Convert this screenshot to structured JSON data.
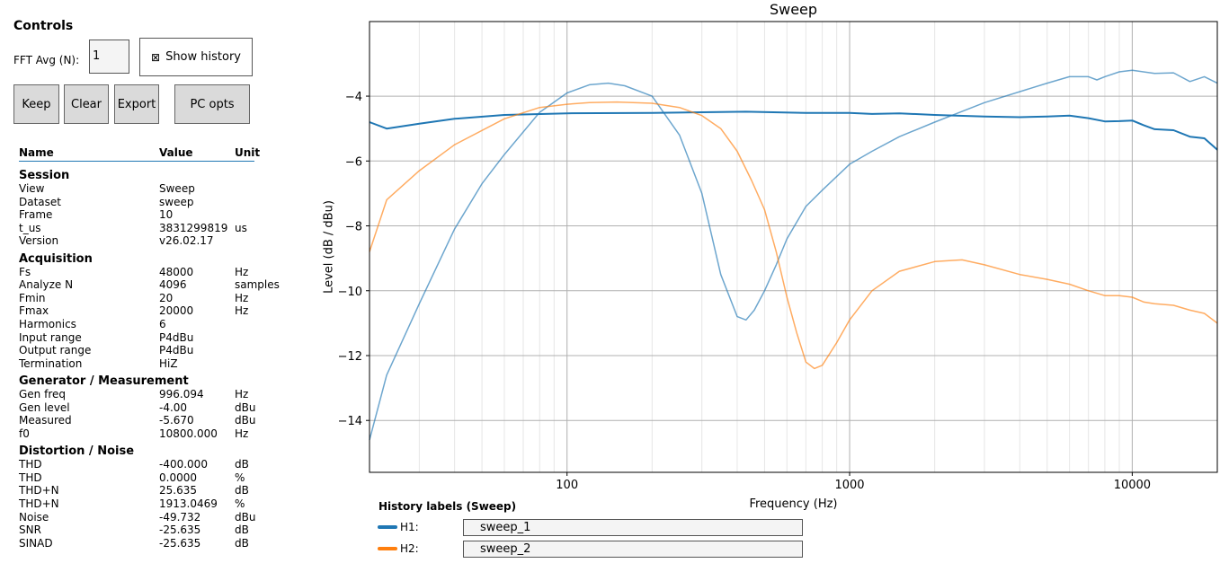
{
  "controls": {
    "title": "Controls",
    "fft_label": "FFT Avg (N):",
    "fft_value": "1",
    "show_history_icon": "⊠",
    "show_history_label": "Show history",
    "buttons": {
      "keep": "Keep",
      "clear": "Clear",
      "export": "Export",
      "pc_opts": "PC opts"
    }
  },
  "table": {
    "headers": {
      "name": "Name",
      "value": "Value",
      "unit": "Unit"
    },
    "sections": [
      {
        "title": "Session",
        "rows": [
          {
            "name": "View",
            "value": "Sweep",
            "unit": ""
          },
          {
            "name": "Dataset",
            "value": "sweep",
            "unit": ""
          },
          {
            "name": "Frame",
            "value": "10",
            "unit": ""
          },
          {
            "name": "t_us",
            "value": "3831299819",
            "unit": "us"
          },
          {
            "name": "Version",
            "value": "v26.02.17",
            "unit": ""
          }
        ]
      },
      {
        "title": "Acquisition",
        "rows": [
          {
            "name": "Fs",
            "value": "48000",
            "unit": "Hz"
          },
          {
            "name": "Analyze N",
            "value": "4096",
            "unit": "samples"
          },
          {
            "name": "Fmin",
            "value": "20",
            "unit": "Hz"
          },
          {
            "name": "Fmax",
            "value": "20000",
            "unit": "Hz"
          },
          {
            "name": "Harmonics",
            "value": "6",
            "unit": ""
          },
          {
            "name": "Input range",
            "value": "P4dBu",
            "unit": ""
          },
          {
            "name": "Output range",
            "value": "P4dBu",
            "unit": ""
          },
          {
            "name": "Termination",
            "value": "HiZ",
            "unit": ""
          }
        ]
      },
      {
        "title": "Generator / Measurement",
        "rows": [
          {
            "name": "Gen freq",
            "value": "996.094",
            "unit": "Hz"
          },
          {
            "name": "Gen level",
            "value": "-4.00",
            "unit": "dBu"
          },
          {
            "name": "Measured",
            "value": "-5.670",
            "unit": "dBu"
          },
          {
            "name": "f0",
            "value": "10800.000",
            "unit": "Hz"
          }
        ]
      },
      {
        "title": "Distortion / Noise",
        "rows": [
          {
            "name": "THD",
            "value": "-400.000",
            "unit": "dB"
          },
          {
            "name": "THD",
            "value": "0.0000",
            "unit": "%"
          },
          {
            "name": "THD+N",
            "value": "25.635",
            "unit": "dB"
          },
          {
            "name": "THD+N",
            "value": "1913.0469",
            "unit": "%"
          },
          {
            "name": "Noise",
            "value": "-49.732",
            "unit": "dBu"
          },
          {
            "name": "SNR",
            "value": "-25.635",
            "unit": "dB"
          },
          {
            "name": "SINAD",
            "value": "-25.635",
            "unit": "dB"
          }
        ]
      }
    ]
  },
  "history": {
    "title": "History labels (Sweep)",
    "items": [
      {
        "label": "H1:",
        "value": "sweep_1",
        "color": "#1f77b4"
      },
      {
        "label": "H2:",
        "value": "sweep_2",
        "color": "#ff7f0e"
      }
    ]
  },
  "chart_data": {
    "type": "line",
    "title": "Sweep",
    "xlabel": "Frequency (Hz)",
    "ylabel": "Level (dB / dBu)",
    "xscale": "log",
    "xlim": [
      20,
      20000
    ],
    "ylim": [
      -15.6,
      -1.7
    ],
    "x_ticks": [
      100,
      1000,
      10000
    ],
    "x_tick_labels": [
      "100",
      "1000",
      "10000"
    ],
    "y_ticks": [
      -14,
      -12,
      -10,
      -8,
      -6,
      -4
    ],
    "y_tick_labels": [
      "−14",
      "−12",
      "−10",
      "−8",
      "−6",
      "−4"
    ],
    "grid": true,
    "series": [
      {
        "color": "#1f77b4",
        "opacity": 1.0,
        "width": 2,
        "x": [
          20,
          23,
          30,
          40,
          60,
          100,
          200,
          430,
          700,
          1000,
          1200,
          1500,
          2000,
          3000,
          4000,
          5000,
          6000,
          7000,
          8000,
          9000,
          10000,
          11000,
          12000,
          14000,
          16000,
          18000,
          20000
        ],
        "y": [
          -4.8,
          -5.0,
          -4.85,
          -4.7,
          -4.58,
          -4.53,
          -4.52,
          -4.48,
          -4.52,
          -4.52,
          -4.55,
          -4.53,
          -4.58,
          -4.63,
          -4.65,
          -4.63,
          -4.6,
          -4.68,
          -4.78,
          -4.77,
          -4.75,
          -4.9,
          -5.02,
          -5.05,
          -5.25,
          -5.3,
          -5.65
        ]
      },
      {
        "color": "#1f77b4",
        "opacity": 0.65,
        "width": 1.5,
        "x": [
          20,
          23,
          30,
          40,
          50,
          60,
          80,
          100,
          120,
          140,
          160,
          200,
          250,
          300,
          350,
          400,
          430,
          460,
          500,
          550,
          600,
          700,
          800,
          1000,
          1200,
          1500,
          2000,
          3000,
          5000,
          6000,
          7000,
          7500,
          8000,
          9000,
          10000,
          12000,
          14000,
          16000,
          18000,
          20000
        ],
        "y": [
          -14.6,
          -12.6,
          -10.4,
          -8.1,
          -6.7,
          -5.8,
          -4.5,
          -3.9,
          -3.65,
          -3.6,
          -3.68,
          -4.0,
          -5.2,
          -7.0,
          -9.5,
          -10.8,
          -10.9,
          -10.6,
          -10.0,
          -9.2,
          -8.4,
          -7.4,
          -6.9,
          -6.1,
          -5.7,
          -5.25,
          -4.8,
          -4.2,
          -3.6,
          -3.4,
          -3.4,
          -3.5,
          -3.4,
          -3.25,
          -3.2,
          -3.3,
          -3.28,
          -3.55,
          -3.4,
          -3.6
        ]
      },
      {
        "color": "#ff7f0e",
        "opacity": 0.65,
        "width": 1.5,
        "x": [
          20,
          23,
          30,
          40,
          60,
          80,
          100,
          120,
          150,
          200,
          250,
          300,
          350,
          400,
          450,
          500,
          550,
          600,
          650,
          700,
          750,
          800,
          900,
          1000,
          1200,
          1500,
          2000,
          2500,
          3000,
          4000,
          5000,
          6000,
          7000,
          8000,
          9000,
          10000,
          11000,
          12000,
          14000,
          16000,
          18000,
          20000
        ],
        "y": [
          -8.8,
          -7.2,
          -6.3,
          -5.5,
          -4.7,
          -4.35,
          -4.25,
          -4.2,
          -4.18,
          -4.22,
          -4.35,
          -4.6,
          -5.0,
          -5.7,
          -6.6,
          -7.5,
          -8.8,
          -10.2,
          -11.3,
          -12.2,
          -12.4,
          -12.3,
          -11.6,
          -10.9,
          -10.0,
          -9.4,
          -9.1,
          -9.05,
          -9.2,
          -9.5,
          -9.65,
          -9.8,
          -10.0,
          -10.15,
          -10.15,
          -10.2,
          -10.35,
          -10.4,
          -10.45,
          -10.6,
          -10.7,
          -11.0
        ]
      }
    ]
  }
}
